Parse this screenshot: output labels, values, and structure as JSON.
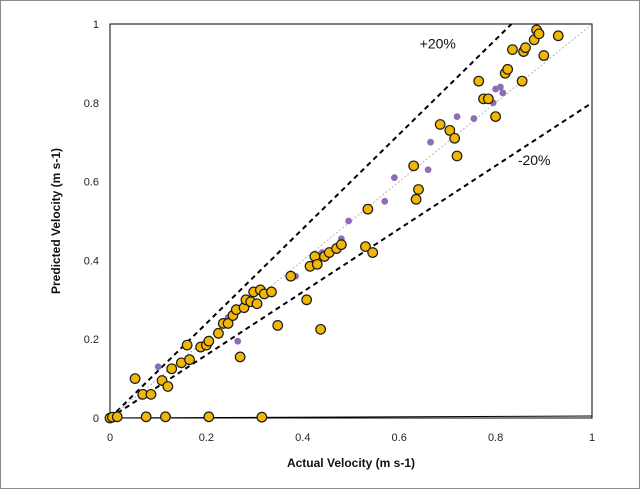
{
  "chart_data": {
    "type": "scatter",
    "title": "",
    "xlabel": "Actual Velocity (m s-1)",
    "ylabel": "Predicted  Velocity (m s-1)",
    "xlim": [
      0,
      1
    ],
    "ylim": [
      0,
      1
    ],
    "x_ticks": [
      "0",
      "0.2",
      "0.4",
      "0.6",
      "0.8",
      "1"
    ],
    "y_ticks": [
      "0",
      "0.2",
      "0.4",
      "0.6",
      "0.8",
      "1"
    ],
    "grid": false,
    "legend": "none",
    "annotations": [
      {
        "text": "+20%",
        "x": 0.68,
        "y": 0.95
      },
      {
        "text": "-20%",
        "x": 0.88,
        "y": 0.655
      }
    ],
    "reference_lines": [
      {
        "style": "dashed",
        "points": [
          [
            0,
            0
          ],
          [
            0.833,
            1.0
          ]
        ]
      },
      {
        "style": "dashed",
        "points": [
          [
            0,
            0
          ],
          [
            1.0,
            0.8
          ]
        ]
      },
      {
        "style": "dotted",
        "points": [
          [
            0,
            0
          ],
          [
            1.0,
            1.0
          ]
        ]
      },
      {
        "style": "solid",
        "points": [
          [
            0,
            0
          ],
          [
            1.0,
            0.005
          ]
        ]
      }
    ],
    "series": [
      {
        "color": "#f2b705",
        "edge_color": "#1a1a1a",
        "marker": "circle",
        "points": [
          [
            0.0,
            0.0
          ],
          [
            0.005,
            0.002
          ],
          [
            0.015,
            0.003
          ],
          [
            0.075,
            0.003
          ],
          [
            0.115,
            0.003
          ],
          [
            0.205,
            0.003
          ],
          [
            0.315,
            0.002
          ],
          [
            0.052,
            0.1
          ],
          [
            0.068,
            0.06
          ],
          [
            0.085,
            0.06
          ],
          [
            0.108,
            0.095
          ],
          [
            0.12,
            0.08
          ],
          [
            0.128,
            0.125
          ],
          [
            0.148,
            0.14
          ],
          [
            0.16,
            0.185
          ],
          [
            0.165,
            0.148
          ],
          [
            0.188,
            0.18
          ],
          [
            0.2,
            0.185
          ],
          [
            0.205,
            0.195
          ],
          [
            0.225,
            0.215
          ],
          [
            0.235,
            0.24
          ],
          [
            0.245,
            0.24
          ],
          [
            0.255,
            0.26
          ],
          [
            0.262,
            0.275
          ],
          [
            0.27,
            0.155
          ],
          [
            0.278,
            0.28
          ],
          [
            0.282,
            0.3
          ],
          [
            0.292,
            0.295
          ],
          [
            0.298,
            0.32
          ],
          [
            0.305,
            0.29
          ],
          [
            0.312,
            0.325
          ],
          [
            0.32,
            0.315
          ],
          [
            0.335,
            0.32
          ],
          [
            0.348,
            0.235
          ],
          [
            0.375,
            0.36
          ],
          [
            0.408,
            0.3
          ],
          [
            0.415,
            0.385
          ],
          [
            0.425,
            0.41
          ],
          [
            0.43,
            0.39
          ],
          [
            0.437,
            0.225
          ],
          [
            0.445,
            0.41
          ],
          [
            0.455,
            0.42
          ],
          [
            0.47,
            0.43
          ],
          [
            0.48,
            0.44
          ],
          [
            0.53,
            0.435
          ],
          [
            0.535,
            0.53
          ],
          [
            0.545,
            0.42
          ],
          [
            0.63,
            0.64
          ],
          [
            0.635,
            0.555
          ],
          [
            0.64,
            0.58
          ],
          [
            0.685,
            0.745
          ],
          [
            0.705,
            0.73
          ],
          [
            0.715,
            0.71
          ],
          [
            0.72,
            0.665
          ],
          [
            0.765,
            0.855
          ],
          [
            0.775,
            0.81
          ],
          [
            0.785,
            0.81
          ],
          [
            0.8,
            0.765
          ],
          [
            0.82,
            0.875
          ],
          [
            0.825,
            0.885
          ],
          [
            0.835,
            0.935
          ],
          [
            0.855,
            0.855
          ],
          [
            0.858,
            0.93
          ],
          [
            0.862,
            0.94
          ],
          [
            0.88,
            0.96
          ],
          [
            0.885,
            0.985
          ],
          [
            0.89,
            0.975
          ],
          [
            0.9,
            0.92
          ],
          [
            0.93,
            0.97
          ]
        ]
      },
      {
        "color": "#8e6fb5",
        "edge_color": "#8e6fb5",
        "marker": "small-circle",
        "points": [
          [
            0.0,
            0.0
          ],
          [
            0.01,
            0.003
          ],
          [
            0.12,
            0.003
          ],
          [
            0.065,
            0.055
          ],
          [
            0.1,
            0.13
          ],
          [
            0.265,
            0.195
          ],
          [
            0.245,
            0.255
          ],
          [
            0.375,
            0.355
          ],
          [
            0.385,
            0.36
          ],
          [
            0.425,
            0.4
          ],
          [
            0.44,
            0.42
          ],
          [
            0.48,
            0.455
          ],
          [
            0.495,
            0.5
          ],
          [
            0.57,
            0.55
          ],
          [
            0.59,
            0.61
          ],
          [
            0.66,
            0.63
          ],
          [
            0.665,
            0.7
          ],
          [
            0.72,
            0.765
          ],
          [
            0.755,
            0.76
          ],
          [
            0.795,
            0.8
          ],
          [
            0.8,
            0.835
          ],
          [
            0.81,
            0.84
          ],
          [
            0.815,
            0.825
          ]
        ]
      }
    ]
  }
}
